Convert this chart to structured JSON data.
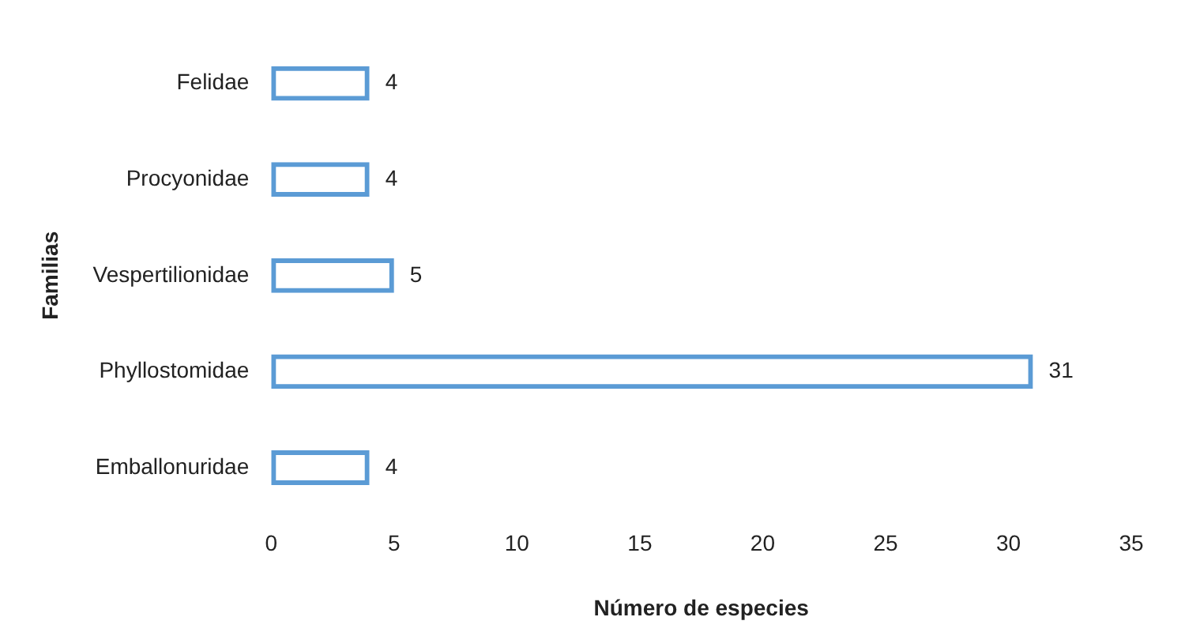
{
  "chart_data": {
    "type": "bar",
    "orientation": "horizontal",
    "categories": [
      "Felidae",
      "Procyonidae",
      "Vespertilionidae",
      "Phyllostomidae",
      "Emballonuridae"
    ],
    "values": [
      4,
      4,
      5,
      31,
      4
    ],
    "color": "#5b9bd5",
    "xlim": [
      0,
      35
    ],
    "xticks": [
      0,
      5,
      10,
      15,
      20,
      25,
      30,
      35
    ],
    "xlabel": "Número de especies",
    "ylabel": "Familias",
    "grid": false,
    "data_labels": true
  }
}
